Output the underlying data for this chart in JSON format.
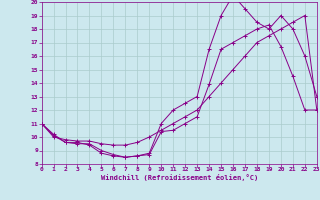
{
  "xlabel": "Windchill (Refroidissement éolien,°C)",
  "background_color": "#cce8ee",
  "grid_color": "#aacccc",
  "line_color": "#880088",
  "xlim": [
    0,
    23
  ],
  "ylim": [
    8,
    20
  ],
  "xticks": [
    0,
    1,
    2,
    3,
    4,
    5,
    6,
    7,
    8,
    9,
    10,
    11,
    12,
    13,
    14,
    15,
    16,
    17,
    18,
    19,
    20,
    21,
    22,
    23
  ],
  "yticks": [
    8,
    9,
    10,
    11,
    12,
    13,
    14,
    15,
    16,
    17,
    18,
    19,
    20
  ],
  "line1_x": [
    0,
    1,
    2,
    3,
    4,
    5,
    6,
    7,
    8,
    9,
    10,
    11,
    12,
    13,
    14,
    15,
    16,
    17,
    18,
    19,
    20,
    21,
    22,
    23
  ],
  "line1_y": [
    11.0,
    10.2,
    9.6,
    9.6,
    9.4,
    8.8,
    8.6,
    8.5,
    8.6,
    8.7,
    10.4,
    10.5,
    11.0,
    11.5,
    13.9,
    16.5,
    17.0,
    17.5,
    18.0,
    18.3,
    16.7,
    14.5,
    12.0,
    12.0
  ],
  "line2_x": [
    0,
    1,
    2,
    3,
    4,
    5,
    6,
    7,
    8,
    9,
    10,
    11,
    12,
    13,
    14,
    15,
    16,
    17,
    18,
    19,
    20,
    21,
    22,
    23
  ],
  "line2_y": [
    11.0,
    10.1,
    9.6,
    9.5,
    9.5,
    9.0,
    8.7,
    8.5,
    8.6,
    8.8,
    11.0,
    12.0,
    12.5,
    13.0,
    16.5,
    19.0,
    20.5,
    19.5,
    18.5,
    18.0,
    19.0,
    18.0,
    16.0,
    13.0
  ],
  "line3_x": [
    0,
    1,
    2,
    3,
    4,
    5,
    6,
    7,
    8,
    9,
    10,
    11,
    12,
    13,
    14,
    15,
    16,
    17,
    18,
    19,
    20,
    21,
    22,
    23
  ],
  "line3_y": [
    11.0,
    10.0,
    9.8,
    9.7,
    9.7,
    9.5,
    9.4,
    9.4,
    9.6,
    10.0,
    10.5,
    11.0,
    11.5,
    12.0,
    13.0,
    14.0,
    15.0,
    16.0,
    17.0,
    17.5,
    18.0,
    18.5,
    19.0,
    12.0
  ]
}
